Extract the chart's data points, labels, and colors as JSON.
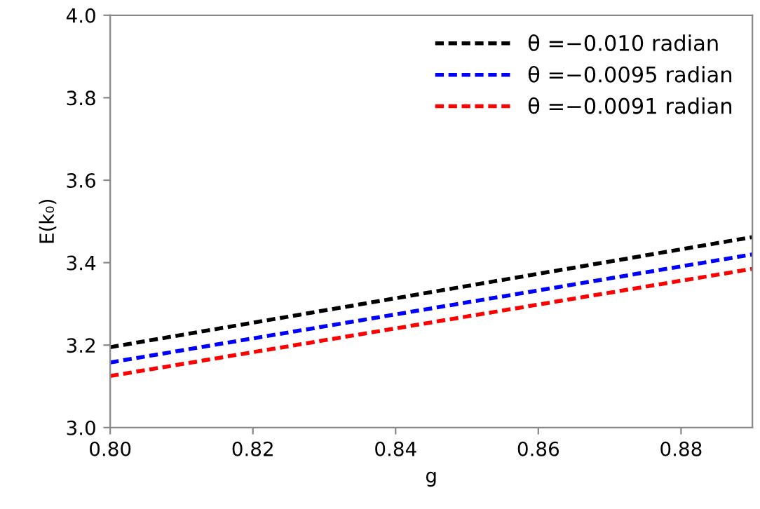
{
  "chart_data": {
    "type": "line",
    "xlabel": "g",
    "ylabel": "E(k₀)",
    "x": [
      0.8,
      0.89
    ],
    "series": [
      {
        "name": "θ =−0.010 radian",
        "color": "#000000",
        "values": [
          3.195,
          3.462
        ]
      },
      {
        "name": "θ =−0.0095 radian",
        "color": "#0000ff",
        "values": [
          3.158,
          3.42
        ]
      },
      {
        "name": "θ =−0.0091 radian",
        "color": "#ff0000",
        "values": [
          3.125,
          3.385
        ]
      }
    ],
    "xlim": [
      0.8,
      0.89
    ],
    "xticks": [
      {
        "value": 0.8,
        "label": "0.80"
      },
      0.82,
      0.84,
      0.86,
      0.88
    ],
    "ylim": [
      3.0,
      4.0
    ],
    "yticks": [
      {
        "value": 3,
        "label": "3.0"
      },
      3.2,
      3.4,
      3.6,
      3.8,
      {
        "value": 4,
        "label": "4.0"
      }
    ],
    "grid": false,
    "legend": "top right",
    "line_style": "dashed",
    "marker": "none"
  }
}
